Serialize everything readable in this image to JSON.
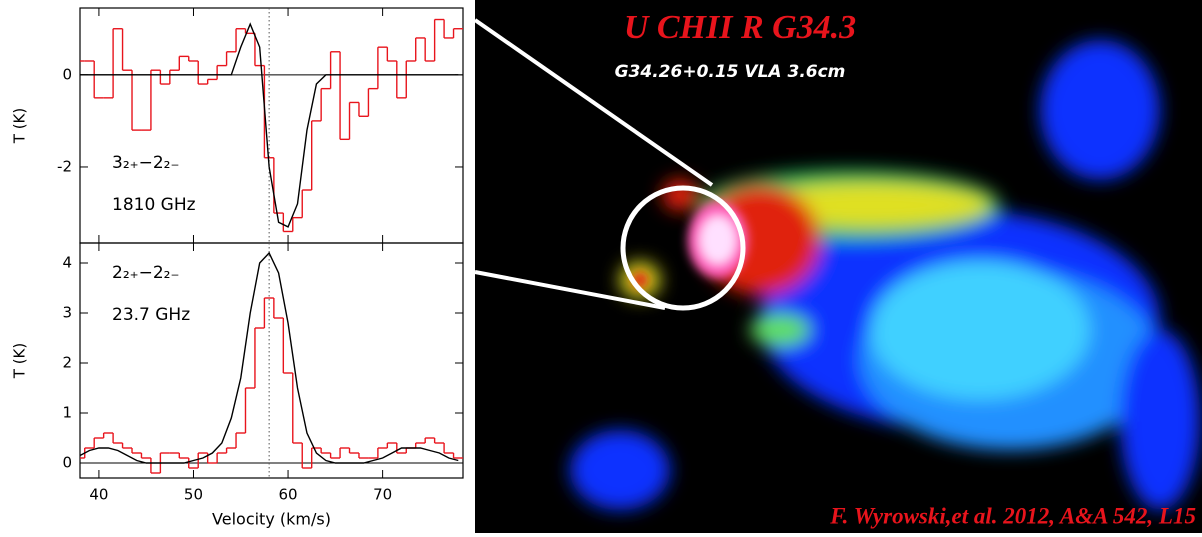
{
  "chart_data": [
    {
      "type": "line",
      "ylabel": "T (K)",
      "annotations": [
        "3₂₊−2₂₋",
        "1810 GHz"
      ],
      "x": [
        38,
        39,
        40,
        41,
        42,
        43,
        44,
        45,
        46,
        47,
        48,
        49,
        50,
        51,
        52,
        53,
        54,
        55,
        56,
        57,
        58,
        59,
        60,
        61,
        62,
        63,
        64,
        65,
        66,
        67,
        68,
        69,
        70,
        71,
        72,
        73,
        74,
        75,
        76,
        77,
        78
      ],
      "series": [
        {
          "color": "#e8141c",
          "step": true,
          "values": [
            0.3,
            0.3,
            -0.5,
            -0.5,
            1.0,
            0.1,
            -1.2,
            -1.2,
            0.1,
            -0.2,
            0.1,
            0.4,
            0.3,
            -0.2,
            -0.1,
            0.2,
            0.5,
            1.0,
            0.9,
            0.2,
            -1.8,
            -3.0,
            -3.4,
            -3.1,
            -2.5,
            -1.0,
            -0.3,
            0.5,
            -1.4,
            -0.6,
            -0.9,
            -0.3,
            0.6,
            0.3,
            -0.5,
            0.3,
            0.8,
            0.3,
            1.2,
            0.8,
            1.0
          ]
        },
        {
          "color": "#000000",
          "step": false,
          "values": [
            0,
            0,
            0,
            0,
            0,
            0,
            0,
            0,
            0,
            0,
            0,
            0,
            0,
            0,
            0,
            0,
            0,
            0.6,
            1.1,
            0.6,
            -2.0,
            -3.2,
            -3.3,
            -2.8,
            -1.2,
            -0.2,
            0,
            0,
            0,
            0,
            0,
            0,
            0,
            0,
            0,
            0,
            0,
            0,
            0,
            0,
            0
          ]
        }
      ],
      "xlim": [
        38,
        78.5
      ],
      "xticks": [
        40,
        50,
        60,
        70
      ],
      "show_xtick_labels": false,
      "ylim": [
        -3.65,
        1.45
      ],
      "yticks": [
        -2,
        0
      ],
      "ref_x": 58
    },
    {
      "type": "line",
      "ylabel": "T (K)",
      "xlabel": "Velocity (km/s)",
      "annotations": [
        "2₂₊−2₂₋",
        "23.7 GHz"
      ],
      "x": [
        38,
        39,
        40,
        41,
        42,
        43,
        44,
        45,
        46,
        47,
        48,
        49,
        50,
        51,
        52,
        53,
        54,
        55,
        56,
        57,
        58,
        59,
        60,
        61,
        62,
        63,
        64,
        65,
        66,
        67,
        68,
        69,
        70,
        71,
        72,
        73,
        74,
        75,
        76,
        77,
        78
      ],
      "series": [
        {
          "color": "#e8141c",
          "step": true,
          "values": [
            0.1,
            0.3,
            0.5,
            0.6,
            0.4,
            0.3,
            0.2,
            0.1,
            -0.2,
            0.2,
            0.2,
            0.1,
            -0.1,
            0.2,
            0,
            0.2,
            0.3,
            0.6,
            1.5,
            2.7,
            3.3,
            2.9,
            1.8,
            0.4,
            -0.1,
            0.3,
            0.2,
            0.1,
            0.3,
            0.2,
            0.1,
            0.1,
            0.3,
            0.4,
            0.2,
            0.3,
            0.4,
            0.5,
            0.4,
            0.2,
            0.1
          ]
        },
        {
          "color": "#000000",
          "step": false,
          "values": [
            0.15,
            0.25,
            0.3,
            0.3,
            0.25,
            0.15,
            0.05,
            0,
            0,
            0,
            0,
            0,
            0.05,
            0.1,
            0.2,
            0.4,
            0.9,
            1.7,
            3.0,
            4.0,
            4.2,
            3.8,
            2.8,
            1.5,
            0.6,
            0.2,
            0.05,
            0,
            0,
            0,
            0,
            0.05,
            0.1,
            0.2,
            0.3,
            0.3,
            0.3,
            0.25,
            0.2,
            0.1,
            0.05
          ]
        }
      ],
      "xlim": [
        38,
        78.5
      ],
      "xticks": [
        40,
        50,
        60,
        70
      ],
      "show_xtick_labels": true,
      "ylim": [
        -0.3,
        4.4
      ],
      "yticks": [
        0,
        1,
        2,
        3,
        4
      ],
      "ref_x": 58
    }
  ],
  "image": {
    "title": "U CHII R G34.3",
    "subtitle": "G34.26+0.15 VLA 3.6cm",
    "credit": "F. Wyrowski,et al. 2012, A&A 542, L15"
  }
}
